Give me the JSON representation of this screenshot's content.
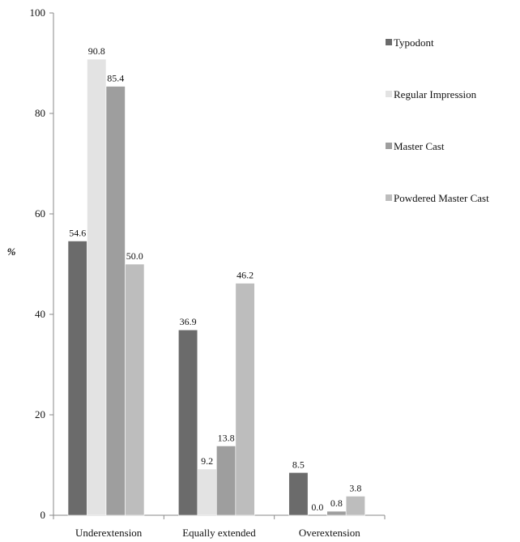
{
  "chart_data": {
    "type": "bar",
    "title": "",
    "xlabel": "",
    "ylabel": "%",
    "ylim": [
      0,
      100
    ],
    "yticks": [
      0,
      20,
      40,
      60,
      80,
      100
    ],
    "grid": false,
    "legend_position": "right",
    "categories": [
      "Underextension",
      "Equally extended",
      "Overextension"
    ],
    "series": [
      {
        "name": "Typodont",
        "color": "#6b6b6b",
        "values": [
          54.6,
          36.9,
          8.5
        ],
        "labels": [
          "54.6",
          "36.9",
          "8.5"
        ]
      },
      {
        "name": "Regular Impression",
        "color": "#e3e3e3",
        "values": [
          90.8,
          9.2,
          0.0
        ],
        "labels": [
          "90.8",
          "9.2",
          "0.0"
        ]
      },
      {
        "name": "Master Cast",
        "color": "#9e9e9e",
        "values": [
          85.4,
          13.8,
          0.8
        ],
        "labels": [
          "85.4",
          "13.8",
          "0.8"
        ]
      },
      {
        "name": "Powdered Master Cast",
        "color": "#bdbdbd",
        "values": [
          50.0,
          46.2,
          3.8
        ],
        "labels": [
          "50.0",
          "46.2",
          "3.8"
        ]
      }
    ]
  }
}
